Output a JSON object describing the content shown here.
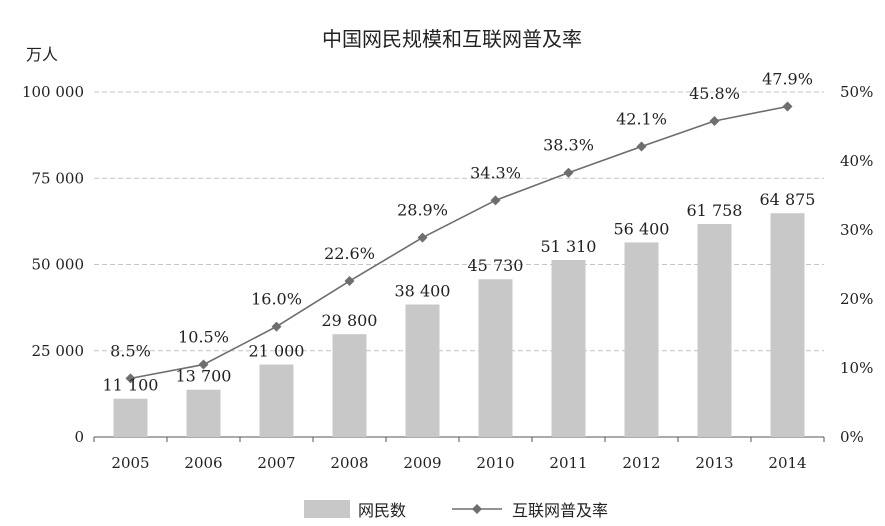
{
  "chart_data": {
    "type": "bar",
    "title": "中国网民规模和互联网普及率",
    "y_left_unit": "万人",
    "categories": [
      "2005",
      "2006",
      "2007",
      "2008",
      "2009",
      "2010",
      "2011",
      "2012",
      "2013",
      "2014"
    ],
    "series": [
      {
        "name": "网民数",
        "type": "bar",
        "axis": "left",
        "color": "#c8c8c8",
        "values": [
          11100,
          13700,
          21000,
          29800,
          38400,
          45730,
          51310,
          56400,
          61758,
          64875
        ],
        "labels": [
          "11 100",
          "13 700",
          "21 000",
          "29 800",
          "38 400",
          "45 730",
          "51 310",
          "56 400",
          "61 758",
          "64 875"
        ]
      },
      {
        "name": "互联网普及率",
        "type": "line",
        "axis": "right",
        "color": "#6e6e6e",
        "marker": "diamond",
        "values": [
          8.5,
          10.5,
          16.0,
          22.6,
          28.9,
          34.3,
          38.3,
          42.1,
          45.8,
          47.9
        ],
        "labels": [
          "8.5%",
          "10.5%",
          "16.0%",
          "22.6%",
          "28.9%",
          "34.3%",
          "38.3%",
          "42.1%",
          "45.8%",
          "47.9%"
        ]
      }
    ],
    "y_left": {
      "min": 0,
      "max": 100000,
      "ticks": [
        0,
        25000,
        50000,
        75000,
        100000
      ],
      "tick_labels": [
        "0",
        "25 000",
        "50 000",
        "75 000",
        "100 000"
      ]
    },
    "y_right": {
      "min": 0,
      "max": 50,
      "ticks": [
        0,
        10,
        20,
        30,
        40,
        50
      ],
      "tick_labels": [
        "0%",
        "10%",
        "20%",
        "30%",
        "40%",
        "50%"
      ]
    },
    "grid": "horizontal dashed",
    "legend_position": "bottom"
  }
}
